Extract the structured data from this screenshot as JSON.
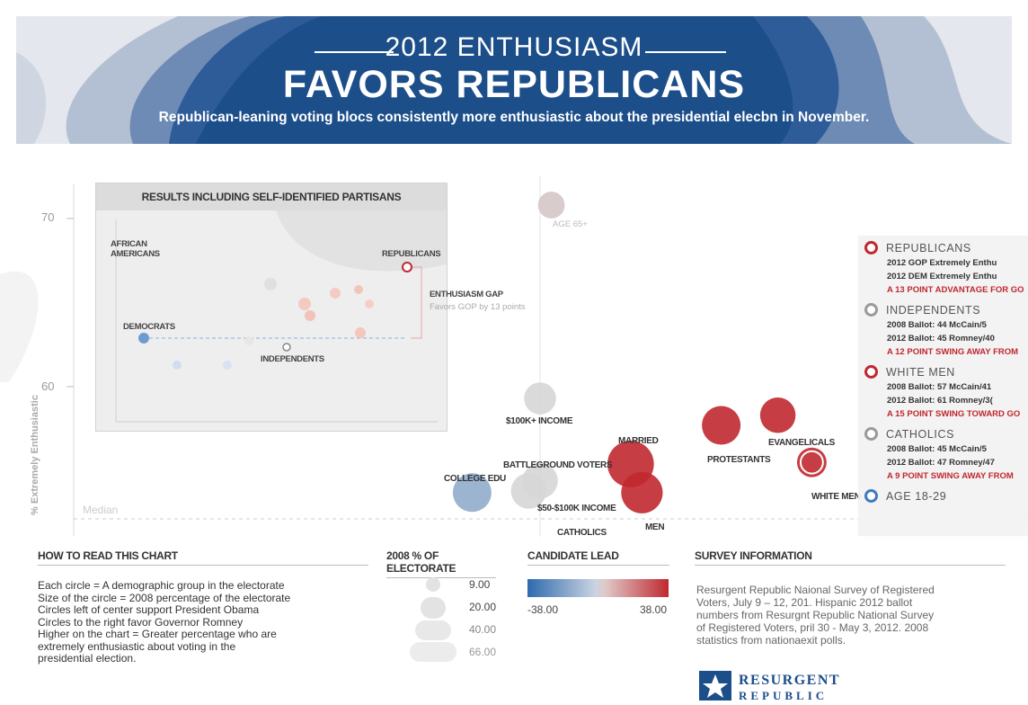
{
  "banner": {
    "title_line1": "2012 ENTHUSIASM",
    "title_line2": "FAVORS REPUBLICANS",
    "subtitle": "Republican-leaning voting blocs consistently more enthusiastic about the presidential elecbn in November."
  },
  "colors": {
    "banner_dark": "#1c4e8a",
    "banner_light": "#dfe3ea",
    "red": "#c0282f",
    "blue": "#3f7bbf",
    "grey": "#d6d6d6"
  },
  "main_chart": {
    "y_axis_label": "% Extremely Enthusiastic",
    "y_ticks": [
      "70",
      "60"
    ],
    "median_label": "Median",
    "labels": {
      "age65": "AGE 65+",
      "income100": "$100K+ INCOME",
      "married": "MARRIED",
      "evangelicals": "EVANGELICALS",
      "protestants": "PROTESTANTS",
      "battleground": "BATTLEGROUND VOTERS",
      "college": "COLLEGE EDU",
      "whitemen": "WHITE MEN",
      "income50": "$50-$100K INCOME",
      "men": "MEN",
      "catholics": "CATHOLICS"
    }
  },
  "inset": {
    "title": "RESULTS INCLUDING SELF-IDENTIFIED PARTISANS",
    "african_americans": "AFRICAN\nAMERICANS",
    "republicans": "REPUBLICANS",
    "democrats": "DEMOCRATS",
    "independents": "INDEPENDENTS",
    "gap_title": "ENTHUSIASM GAP",
    "gap_text": "Favors GOP by 13 points"
  },
  "legend": [
    {
      "title": "REPUBLICANS",
      "icon": "red-circle-icon",
      "lines": [
        "2012 GOP Extremely Enthu",
        "2012 DEM Extremely Enthu"
      ],
      "highlight": "A 13 POINT ADVANTAGE FOR GO"
    },
    {
      "title": "INDEPENDENTS",
      "icon": "grey-circle-icon",
      "lines": [
        "2008 Ballot: 44 McCain/5",
        "2012 Ballot: 45 Romney/40"
      ],
      "highlight": "A 12 POINT SWING AWAY FROM"
    },
    {
      "title": "WHITE MEN",
      "icon": "red-circle-icon",
      "lines": [
        "2008 Ballot: 57 McCain/41",
        "2012 Ballot: 61 Romney/3("
      ],
      "highlight": "A 15 POINT SWING TOWARD GO"
    },
    {
      "title": "CATHOLICS",
      "icon": "grey-circle-icon",
      "lines": [
        "2008 Ballot: 45 McCain/5",
        "2012 Ballot: 47 Romney/47"
      ],
      "highlight": "A 9 POINT SWING AWAY FROM"
    },
    {
      "title": "AGE 18-29",
      "icon": "blue-circle-icon",
      "lines": [],
      "highlight": ""
    }
  ],
  "how_to_read": {
    "heading": "HOW TO READ THIS CHART",
    "lines": [
      "Each circle = A demographic group in the electorate",
      "Size of the circle = 2008 percentage of the electorate",
      "Circles left of center support President Obama",
      "Circles to the right favor Governor Romney",
      "Higher on the chart = Greater percentage who are",
      "extremely enthusiastic about voting in the",
      "presidential election."
    ]
  },
  "electorate_key": {
    "heading": "2008 % OF ELECTORATE",
    "values": [
      "9.00",
      "20.00",
      "40.00",
      "66.00"
    ]
  },
  "lead_key": {
    "heading": "CANDIDATE LEAD",
    "min": "-38.00",
    "max": "38.00"
  },
  "survey": {
    "heading": "SURVEY INFORMATION",
    "lines": [
      "Resurgent Republic Nаional Survey of Registered",
      "Voters, July 9 – 12, 201. Hispanic 2012 ballot",
      "numbers from Resurgnt Republic National Survey",
      "of Registered Voters, pril 30 - May 3, 2012. 2008",
      "statistics from nationаexit polls."
    ],
    "logo_line1": "RESURGENT",
    "logo_line2": "REPUBLIC"
  },
  "chart_data": {
    "type": "scatter",
    "title": "2012 ENTHUSIASM FAVORS REPUBLICANS",
    "ylabel": "% Extremely Enthusiastic",
    "y_ticks": [
      70,
      60
    ],
    "ylim": [
      52,
      72
    ],
    "xlim": [
      -38,
      38
    ],
    "size_metric": "2008 % OF ELECTORATE",
    "color_metric": "CANDIDATE LEAD",
    "points": [
      {
        "label": "AGE 65+",
        "x": 1,
        "y": 70.8,
        "size": 9,
        "lead": 1
      },
      {
        "label": "$100K+ INCOME",
        "x": 0,
        "y": 59.3,
        "size": 15,
        "lead": 0
      },
      {
        "label": "MARRIED",
        "x": 8,
        "y": 55.4,
        "size": 40,
        "lead": 15
      },
      {
        "label": "EVANGELICALS",
        "x": 21,
        "y": 58.3,
        "size": 20,
        "lead": 25
      },
      {
        "label": "PROTESTANTS",
        "x": 16,
        "y": 57.7,
        "size": 25,
        "lead": 22
      },
      {
        "label": "BATTLEGROUND VOTERS",
        "x": 0,
        "y": 54.4,
        "size": 20,
        "lead": 0
      },
      {
        "label": "COLLEGE EDU",
        "x": -6,
        "y": 53.7,
        "size": 25,
        "lead": -8
      },
      {
        "label": "WHITE MEN",
        "x": 24,
        "y": 55.5,
        "size": 12,
        "lead": 30
      },
      {
        "label": "$50-$100K INCOME",
        "x": -1,
        "y": 53.8,
        "size": 20,
        "lead": 0
      },
      {
        "label": "MEN",
        "x": 9,
        "y": 53.7,
        "size": 30,
        "lead": 12
      }
    ]
  }
}
